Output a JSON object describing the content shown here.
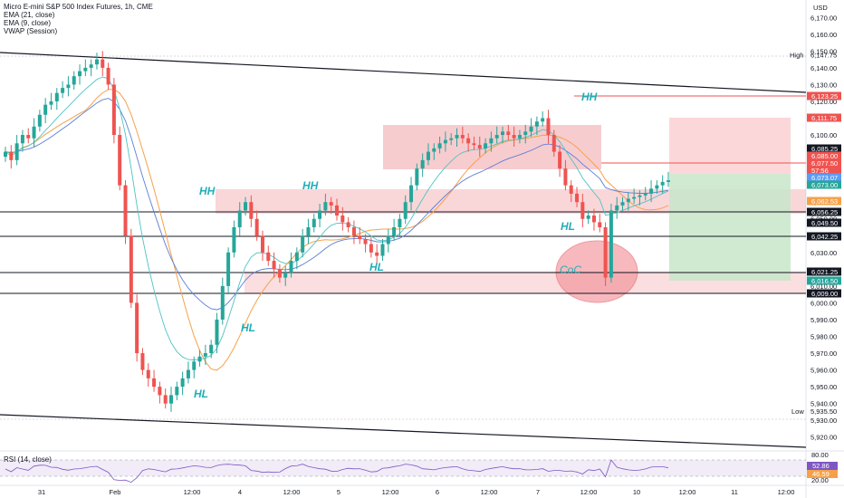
{
  "legend": {
    "title": "Micro E-mini S&P 500 Index Futures, 1h, CME",
    "ema21": "EMA (21, close)",
    "ema9": "EMA (9, close)",
    "vwap": "VWAP (Session)"
  },
  "rsi": {
    "label": "RSI (14, close)",
    "ticks": [
      "80.00",
      "20.00"
    ],
    "tag1": "52.86",
    "tag2": "46.59"
  },
  "price_axis": {
    "currency": "USD",
    "ticks": [
      "6,170.00",
      "6,160.00",
      "6,150.00",
      "6,140.00",
      "6,130.00",
      "6,120.00",
      "6,110.00",
      "6,100.00",
      "6,090.00",
      "6,080.00",
      "6,070.00",
      "6,060.00",
      "6,050.00",
      "6,040.00",
      "6,030.00",
      "6,020.00",
      "6,010.00",
      "6,000.00",
      "5,990.00",
      "5,980.00",
      "5,970.00",
      "5,960.00",
      "5,950.00",
      "5,940.00",
      "5,930.00",
      "5,920.00"
    ],
    "high_label": "High",
    "high_value": "6,147.75",
    "low_label": "Low",
    "low_value": "5,935.50"
  },
  "price_tags": [
    {
      "text": "6,123.25",
      "color": "#ef5350"
    },
    {
      "text": "6,111.75",
      "color": "#ef5350"
    },
    {
      "text": "6,085.25",
      "color": "#131722"
    },
    {
      "text": "6,085.00",
      "color": "#ef5350"
    },
    {
      "text": "6,077.50",
      "color": "#ef5350"
    },
    {
      "text": "57:56",
      "color": "#ef5350"
    },
    {
      "text": "6,073.07",
      "color": "#5b9cf6"
    },
    {
      "text": "6,073.00",
      "color": "#26a69a"
    },
    {
      "text": "6,062.53",
      "color": "#f6a14a"
    },
    {
      "text": "6,056.25",
      "color": "#131722"
    },
    {
      "text": "6,049.50",
      "color": "#131722"
    },
    {
      "text": "6,042.25",
      "color": "#131722"
    },
    {
      "text": "6,021.25",
      "color": "#131722"
    },
    {
      "text": "6,016.50",
      "color": "#26a69a"
    },
    {
      "text": "6,009.00",
      "color": "#131722"
    }
  ],
  "time_axis": [
    "31",
    "Feb",
    "12:00",
    "4",
    "12:00",
    "5",
    "12:00",
    "6",
    "12:00",
    "7",
    "12:00",
    "10",
    "12:00",
    "11",
    "12:00"
  ],
  "annotations": [
    "HH",
    "HH",
    "HH",
    "HL",
    "HL",
    "HL",
    "HL",
    "CoC"
  ],
  "colors": {
    "up": "#26a69a",
    "down": "#ef5350",
    "ema21": "#5b7fd6",
    "ema9": "#4fc3c3",
    "vwap": "#f6a14a",
    "zone": "#f4b6ba",
    "target": "#c8e6c9",
    "stop": "#fcd0d2"
  },
  "chart_data": {
    "type": "candlestick",
    "title": "Micro E-mini S&P 500 Index Futures, 1h, CME",
    "ylim": [
      5915,
      6175
    ],
    "x_labels": [
      "31",
      "Feb",
      "12:00",
      "4",
      "12:00",
      "5",
      "12:00",
      "6",
      "12:00",
      "7",
      "12:00",
      "10",
      "12:00",
      "11",
      "12:00"
    ],
    "close": [
      6090,
      6085,
      6095,
      6100,
      6098,
      6105,
      6112,
      6118,
      6120,
      6125,
      6128,
      6130,
      6135,
      6138,
      6140,
      6142,
      6145,
      6140,
      6130,
      6100,
      6070,
      6040,
      6000,
      5970,
      5960,
      5955,
      5950,
      5945,
      5940,
      5945,
      5950,
      5955,
      5960,
      5965,
      5968,
      5970,
      5975,
      5990,
      6010,
      6030,
      6045,
      6055,
      6060,
      6050,
      6040,
      6030,
      6025,
      6020,
      6015,
      6018,
      6025,
      6030,
      6040,
      6045,
      6050,
      6055,
      6060,
      6058,
      6052,
      6048,
      6045,
      6040,
      6038,
      6035,
      6030,
      6028,
      6035,
      6040,
      6045,
      6050,
      6060,
      6070,
      6080,
      6085,
      6090,
      6092,
      6095,
      6097,
      6098,
      6100,
      6098,
      6095,
      6094,
      6092,
      6095,
      6098,
      6100,
      6102,
      6100,
      6098,
      6100,
      6102,
      6105,
      6108,
      6110,
      6100,
      6090,
      6080,
      6070,
      6065,
      6060,
      6050,
      6052,
      6048,
      6045,
      6015,
      6055,
      6058,
      6060,
      6062,
      6063,
      6064,
      6065,
      6068,
      6070,
      6072,
      6073
    ]
  }
}
